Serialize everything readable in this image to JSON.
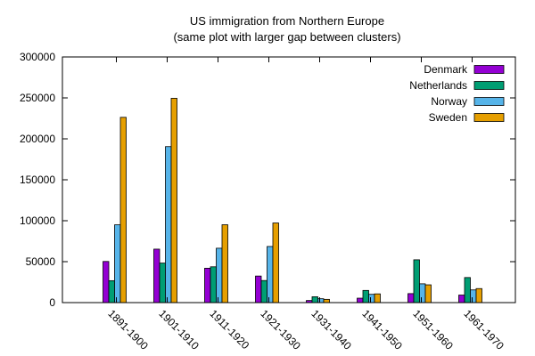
{
  "chart_data": {
    "type": "bar",
    "title": "US immigration from Northern Europe",
    "subtitle": "(same plot with larger gap between clusters)",
    "xlabel": "",
    "ylabel": "",
    "ylim": [
      0,
      300000
    ],
    "yticks": [
      "0",
      "50000",
      "100000",
      "150000",
      "200000",
      "250000",
      "300000"
    ],
    "categories": [
      "1891-1900",
      "1901-1910",
      "1911-1920",
      "1921-1930",
      "1931-1940",
      "1941-1950",
      "1951-1960",
      "1961-1970"
    ],
    "series": [
      {
        "name": "Denmark",
        "color": "#9400d3",
        "values": [
          50231,
          65285,
          41983,
          32430,
          2559,
          5393,
          10984,
          9201
        ]
      },
      {
        "name": "Netherlands",
        "color": "#009e73",
        "values": [
          26758,
          48262,
          43718,
          26948,
          7150,
          14860,
          52277,
          30606
        ]
      },
      {
        "name": "Norway",
        "color": "#56b4e9",
        "values": [
          95015,
          190505,
          66395,
          68531,
          4740,
          10100,
          22935,
          15484
        ]
      },
      {
        "name": "Sweden",
        "color": "#e69f00",
        "values": [
          226266,
          249534,
          95074,
          97249,
          3960,
          10665,
          21697,
          17116
        ]
      }
    ],
    "legend_position": "top-right",
    "grid": false
  }
}
